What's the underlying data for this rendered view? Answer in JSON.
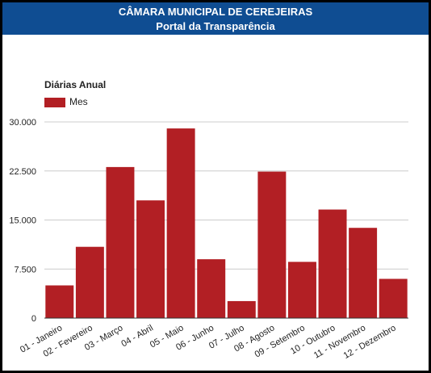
{
  "header": {
    "title": "CÂMARA MUNICIPAL DE CEREJEIRAS",
    "subtitle": "Portal da Transparência"
  },
  "colors": {
    "header_bg": "#0f4d92",
    "bar": "#b21f24",
    "grid": "#cccccc",
    "baseline": "#333333",
    "text": "#222222"
  },
  "chart_data": {
    "type": "bar",
    "title": "Diárias Anual",
    "legend_position": "top-left",
    "grid": true,
    "categories": [
      "01 - Janeiro",
      "02 - Fevereiro",
      "03 - Março",
      "04 - Abril",
      "05 - Maio",
      "06 - Junho",
      "07 - Julho",
      "08 - Agosto",
      "09 - Setembro",
      "10 - Outubro",
      "11 - Novembro",
      "12 - Dezembro"
    ],
    "series": [
      {
        "name": "Mes",
        "values": [
          5000,
          10900,
          23100,
          18000,
          29000,
          9000,
          2600,
          22400,
          8600,
          16600,
          13800,
          6000
        ]
      }
    ],
    "ylim": [
      0,
      30000
    ],
    "yticks": [
      0,
      7500,
      15000,
      22500,
      30000
    ],
    "ytick_labels": [
      "0",
      "7.500",
      "15.000",
      "22.500",
      "30.000"
    ]
  }
}
